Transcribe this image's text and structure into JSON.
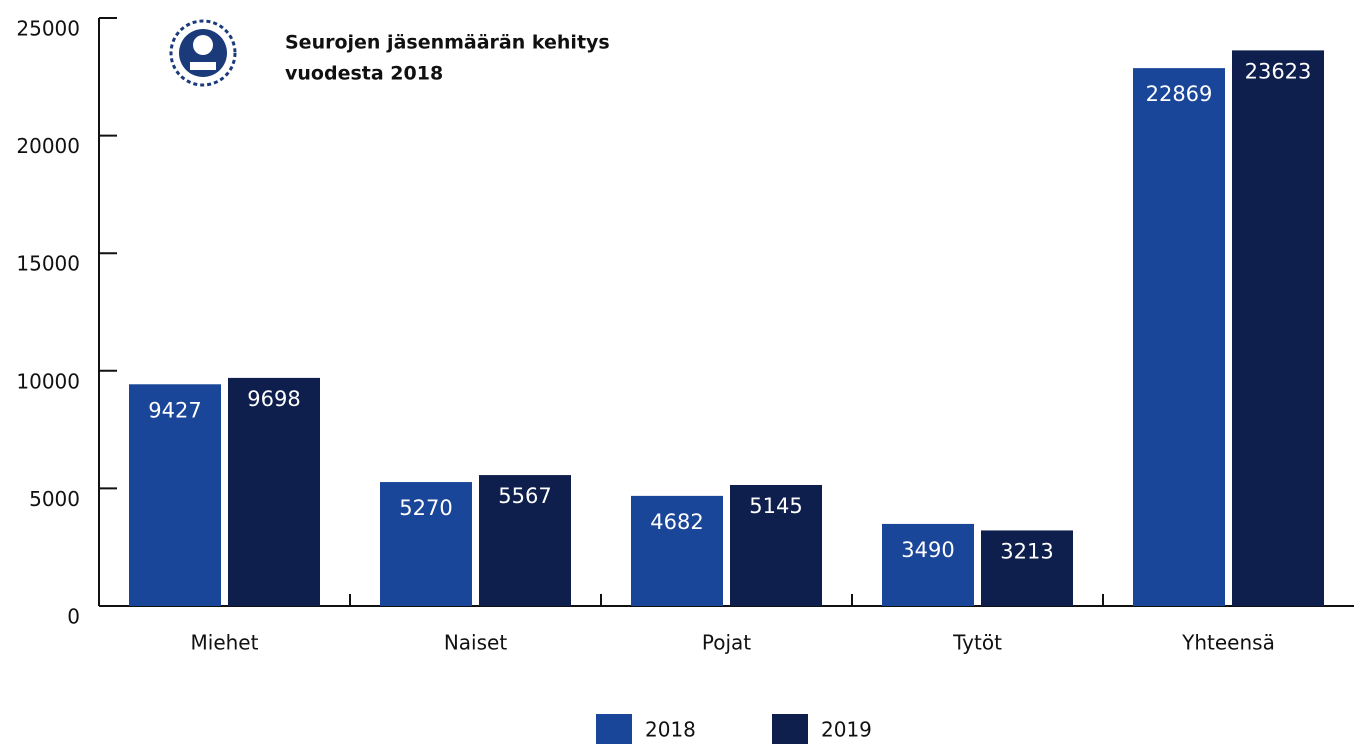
{
  "chart_data": {
    "type": "bar",
    "title": [
      "Seurojen jäsenmäärän kehitys",
      "vuodesta 2018"
    ],
    "categories": [
      "Miehet",
      "Naiset",
      "Pojat",
      "Tytöt",
      "Yhteensä"
    ],
    "series": [
      {
        "name": "2018",
        "color": "#1a4699",
        "values": [
          9427,
          5270,
          4682,
          3490,
          22869
        ]
      },
      {
        "name": "2019",
        "color": "#0e1f4d",
        "values": [
          9698,
          5567,
          5145,
          3213,
          23623
        ]
      }
    ],
    "ylim": [
      0,
      25000
    ],
    "yticks": [
      0,
      5000,
      10000,
      15000,
      20000,
      25000
    ],
    "legend": "bottom"
  }
}
